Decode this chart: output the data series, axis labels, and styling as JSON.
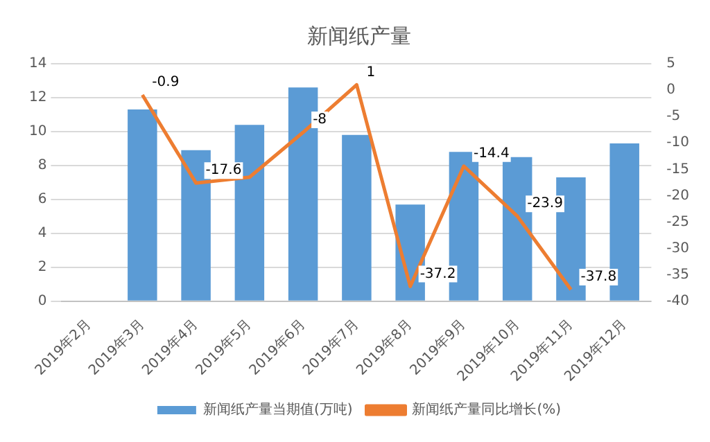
{
  "chart_data": {
    "type": "bar",
    "title": "新闻纸产量",
    "categories": [
      "2019年2月",
      "2019年3月",
      "2019年4月",
      "2019年5月",
      "2019年6月",
      "2019年7月",
      "2019年8月",
      "2019年9月",
      "2019年10月",
      "2019年11月",
      "2019年12月"
    ],
    "series": [
      {
        "name": "新闻纸产量当期值(万吨)",
        "color": "#5b9bd5",
        "values": [
          null,
          11.3,
          8.9,
          10.4,
          12.6,
          9.8,
          5.7,
          8.8,
          8.5,
          7.3,
          9.3
        ]
      },
      {
        "name": "新闻纸产量同比增长(%)",
        "type": "line",
        "axis": "y2",
        "color": "#ed7d31",
        "values": [
          null,
          -0.9,
          -17.6,
          -16.5,
          -8,
          1,
          -37.2,
          -14.4,
          -23.9,
          -37.8,
          null
        ],
        "value_labels": [
          null,
          "-0.9",
          "-17.6",
          null,
          "-8",
          "1",
          "-37.2",
          "-14.4",
          "-23.9",
          "-37.8",
          null
        ]
      }
    ],
    "ylim": [
      0,
      14
    ],
    "yticks": [
      0,
      2,
      4,
      6,
      8,
      10,
      12,
      14
    ],
    "y2lim": [
      -40,
      5
    ],
    "y2ticks": [
      -40,
      -35,
      -30,
      -25,
      -20,
      -15,
      -10,
      -5,
      0,
      5
    ],
    "grid": "y",
    "legend": "bottom",
    "marker": "none"
  }
}
